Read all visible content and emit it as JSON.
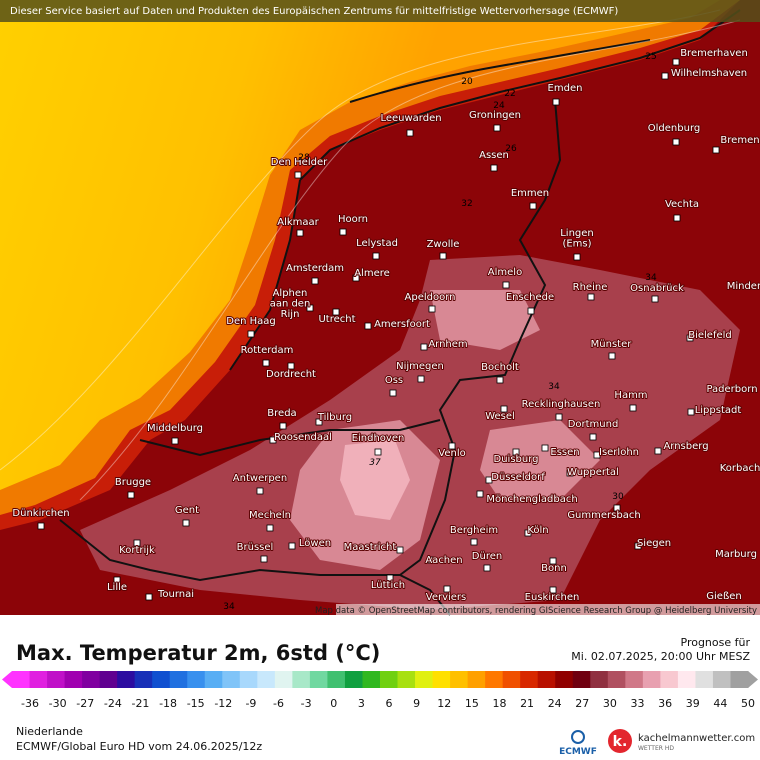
{
  "banner": "Dieser Service basiert auf Daten und Produkten des Europäischen Zentrums für mittelfristige Wettervorhersage (ECMWF)",
  "attribution": "Map data © OpenStreetMap contributors, rendering GIScience Research Group @ Heidelberg University",
  "cities": [
    [
      "Bremerhaven"
    ],
    [
      "Wilhelmshaven"
    ],
    [
      "Emden"
    ],
    [
      "Leeuwarden"
    ],
    [
      "Groningen"
    ],
    [
      "Oldenburg"
    ],
    [
      "Bremen"
    ],
    [
      "Den Helder"
    ],
    [
      "Assen"
    ],
    [
      "Emmen"
    ],
    [
      "Vechta"
    ],
    [
      "Alkmaar"
    ],
    [
      "Hoorn"
    ],
    [
      "Lingen",
      "(Ems)"
    ],
    [
      "Lelystad"
    ],
    [
      "Zwolle"
    ],
    [
      "Amsterdam"
    ],
    [
      "Almere"
    ],
    [
      "Almelo"
    ],
    [
      "Rheine"
    ],
    [
      "Osnabrück"
    ],
    [
      "Minden"
    ],
    [
      "Alphen",
      "aan den",
      "Rijn"
    ],
    [
      "Apeldoorn"
    ],
    [
      "Enschede"
    ],
    [
      "Bielefeld"
    ],
    [
      "Den Haag"
    ],
    [
      "Utrecht"
    ],
    [
      "Amersfoort"
    ],
    [
      "Arnhem"
    ],
    [
      "Münster"
    ],
    [
      "Rotterdam"
    ],
    [
      "Dordrecht"
    ],
    [
      "Nijmegen"
    ],
    [
      "Oss"
    ],
    [
      "Bocholt"
    ],
    [
      "Paderborn"
    ],
    [
      "Hamm"
    ],
    [
      "Recklinghausen"
    ],
    [
      "Lippstadt"
    ],
    [
      "Breda"
    ],
    [
      "Tilburg"
    ],
    [
      "Wesel"
    ],
    [
      "Middelburg"
    ],
    [
      "Dortmund"
    ],
    [
      "Roosendaal"
    ],
    [
      "Eindhoven"
    ],
    [
      "Arnsberg"
    ],
    [
      "Venlo"
    ],
    [
      "Essen"
    ],
    [
      "Iserlohn"
    ],
    [
      "Duisburg"
    ],
    [
      "Korbach"
    ],
    [
      "Wuppertal"
    ],
    [
      "Antwerpen"
    ],
    [
      "Brugge"
    ],
    [
      "Düsseldorf"
    ],
    [
      "Mönchengladbach"
    ],
    [
      "Dünkirchen"
    ],
    [
      "Gent"
    ],
    [
      "Mecheln"
    ],
    [
      "Gummersbach"
    ],
    [
      "Bergheim"
    ],
    [
      "Köln"
    ],
    [
      "Kortrijk"
    ],
    [
      "Brüssel"
    ],
    [
      "Löwen"
    ],
    [
      "Maastricht"
    ],
    [
      "Düren"
    ],
    [
      "Siegen"
    ],
    [
      "Marburg"
    ],
    [
      "Aachen"
    ],
    [
      "Bonn"
    ],
    [
      "Lille"
    ],
    [
      "Tournai"
    ],
    [
      "Lüttich"
    ],
    [
      "Euskirchen"
    ],
    [
      "Verviers"
    ],
    [
      "Gießen"
    ]
  ],
  "contour_labels": [
    "20",
    "22",
    "24",
    "26",
    "28",
    "25",
    "32",
    "34",
    "34",
    "37",
    "34",
    "30"
  ],
  "footer": {
    "title": "Max. Temperatur 2m, 6std (°C)",
    "forecast_label": "Prognose für",
    "forecast_time": "Mi. 02.07.2025, 20:00 Uhr MESZ",
    "region": "Niederlande",
    "model": "ECMWF/Global Euro HD vom  24.06.2025/12z",
    "ecmwf_logo": "ECMWF",
    "brand": "kachelmannwetter.com",
    "brand_sub": "WETTER HD"
  },
  "colorbar": {
    "ticks": [
      -36,
      -30,
      -27,
      -24,
      -21,
      -18,
      -15,
      -12,
      -9,
      -6,
      -3,
      0,
      3,
      6,
      9,
      12,
      15,
      18,
      21,
      24,
      27,
      30,
      33,
      36,
      39,
      44,
      50
    ],
    "colors": [
      "#ff33ff",
      "#e020e0",
      "#c010c8",
      "#a000b0",
      "#8000a0",
      "#600090",
      "#2c0ca0",
      "#1830b8",
      "#1050d0",
      "#2070e0",
      "#3890ee",
      "#58aef4",
      "#80c4f8",
      "#a8d8fc",
      "#c8e8fc",
      "#e0f4f0",
      "#a8e8c8",
      "#70d8a0",
      "#40c070",
      "#10a040",
      "#30b820",
      "#70d010",
      "#a8e010",
      "#e0f010",
      "#ffe000",
      "#ffc000",
      "#ffa000",
      "#ff7800",
      "#f05000",
      "#d82800",
      "#b81000",
      "#900000",
      "#700010",
      "#903040",
      "#b05060",
      "#d07888",
      "#e8a0b0",
      "#f8c8d0",
      "#ffe8ee",
      "#e0e0e0",
      "#c0c0c0",
      "#a0a0a0"
    ]
  }
}
